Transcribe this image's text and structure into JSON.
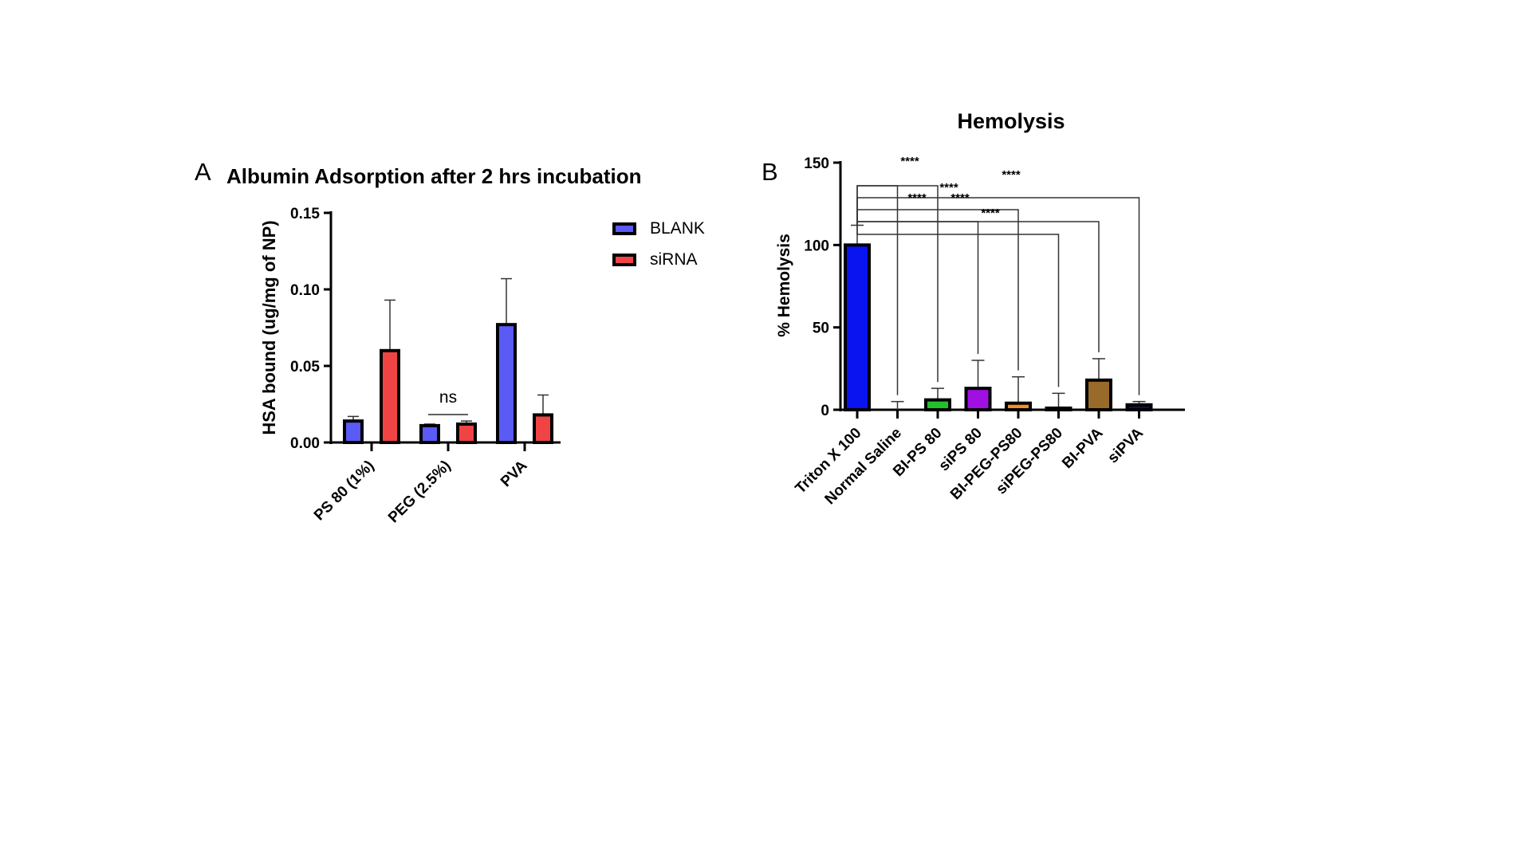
{
  "chart_data": [
    {
      "type": "bar",
      "panel_label": "A",
      "title": "Albumin Adsorption after 2 hrs incubation",
      "xlabel": "",
      "ylabel": "HSA bound  (ug/mg of NP)",
      "ylim": [
        0,
        0.15
      ],
      "yticks": [
        "0.00",
        "0.05",
        "0.10",
        "0.15"
      ],
      "ytick_values": [
        0,
        0.05,
        0.1,
        0.15
      ],
      "categories": [
        "PS 80 (1%)",
        "PEG (2.5%)",
        "PVA"
      ],
      "legend_position": "top-right",
      "series": [
        {
          "name": "BLANK",
          "color": "#5a5af5",
          "values": [
            0.014,
            0.011,
            0.077
          ],
          "error_upper": [
            0.017,
            0.012,
            0.107
          ]
        },
        {
          "name": "siRNA",
          "color": "#f04444",
          "values": [
            0.06,
            0.012,
            0.018
          ],
          "error_upper": [
            0.093,
            0.014,
            0.031
          ]
        }
      ],
      "annotations": [
        {
          "text": "ns",
          "between": "PEG (2.5%) BLANK and siRNA"
        }
      ]
    },
    {
      "type": "bar",
      "panel_label": "B",
      "title": "Hemolysis",
      "xlabel": "",
      "ylabel": "% Hemolysis",
      "ylim": [
        0,
        150
      ],
      "yticks": [
        "0",
        "50",
        "100",
        "150"
      ],
      "ytick_values": [
        0,
        50,
        100,
        150
      ],
      "categories": [
        "Triton X 100",
        "Normal Saline",
        "BI-PS 80",
        "siPS 80",
        "BI-PEG-PS80",
        "siPEG-PS80",
        "BI-PVA",
        "siPVA"
      ],
      "values": [
        100,
        0,
        6,
        13,
        4,
        1,
        18,
        3
      ],
      "error_upper": [
        112,
        5,
        13,
        30,
        20,
        10,
        31,
        5
      ],
      "colors": [
        "#0a14f0",
        "#ffffff",
        "#22c02a",
        "#a010e0",
        "#f0902a",
        "#ffffff",
        "#9a6a2a",
        "#101040"
      ],
      "significance": [
        {
          "text": "****",
          "to": "Normal Saline"
        },
        {
          "text": "****",
          "to": "BI-PS 80"
        },
        {
          "text": "****",
          "to": "siPS 80"
        },
        {
          "text": "****",
          "to": "BI-PEG-PS80"
        },
        {
          "text": "****",
          "to": "siPEG-PS80"
        },
        {
          "text": "****",
          "to": "BI-PVA"
        },
        {
          "text": "****",
          "to": "siPVA"
        }
      ]
    }
  ]
}
